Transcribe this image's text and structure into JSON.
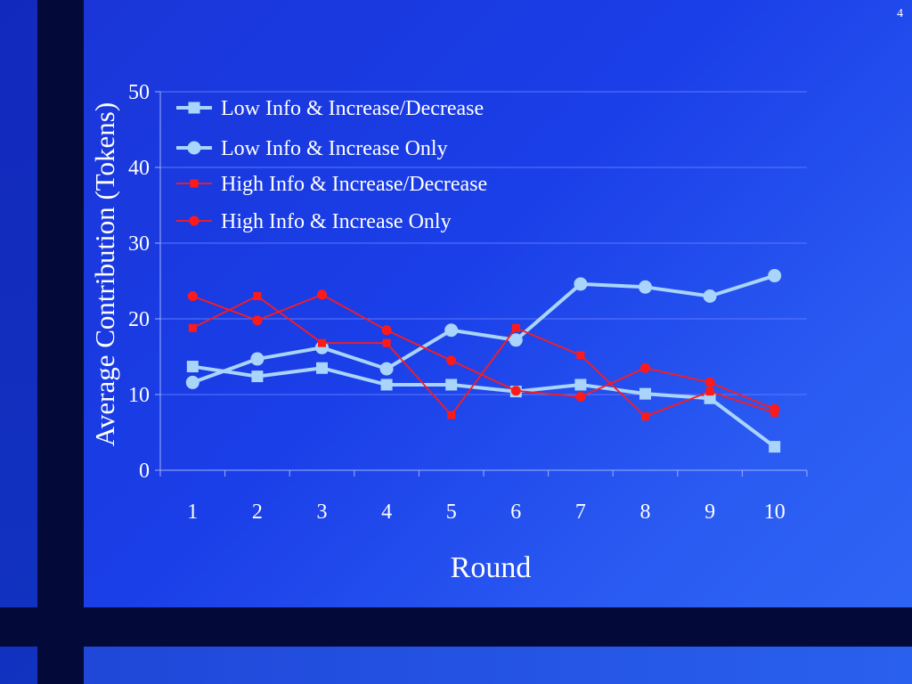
{
  "slide_number": "4",
  "colors": {
    "low_info": "#a9d4fb",
    "high_info": "#ff1a1a",
    "grid": "#5b78ff",
    "axis": "#9fb0ff"
  },
  "chart_data": {
    "type": "line",
    "xlabel": "Round",
    "ylabel": "Average Contribution (Tokens)",
    "ylim": [
      0,
      50
    ],
    "yticks": [
      0,
      10,
      20,
      30,
      40,
      50
    ],
    "categories": [
      "1",
      "2",
      "3",
      "4",
      "5",
      "6",
      "7",
      "8",
      "9",
      "10"
    ],
    "legend_position": "top-left",
    "series": [
      {
        "name": "Low Info & Increase/Decrease",
        "marker": "square",
        "color": "#a9d4fb",
        "weight": "thick",
        "values": [
          13.7,
          12.4,
          13.5,
          11.3,
          11.3,
          10.4,
          11.3,
          10.1,
          9.5,
          3.1
        ]
      },
      {
        "name": "Low Info & Increase Only",
        "marker": "circle",
        "color": "#a9d4fb",
        "weight": "thick",
        "values": [
          11.6,
          14.7,
          16.2,
          13.4,
          18.5,
          17.2,
          24.6,
          24.2,
          23.0,
          25.7
        ]
      },
      {
        "name": "High Info & Increase/Decrease",
        "marker": "square",
        "color": "#ff1a1a",
        "weight": "thin",
        "values": [
          18.8,
          23.0,
          16.8,
          16.8,
          7.3,
          18.8,
          15.2,
          7.1,
          10.4,
          7.6
        ]
      },
      {
        "name": "High Info & Increase Only",
        "marker": "circle",
        "color": "#ff1a1a",
        "weight": "thin",
        "values": [
          23.0,
          19.8,
          23.2,
          18.5,
          14.5,
          10.5,
          9.7,
          13.5,
          11.6,
          8.1
        ]
      }
    ]
  }
}
